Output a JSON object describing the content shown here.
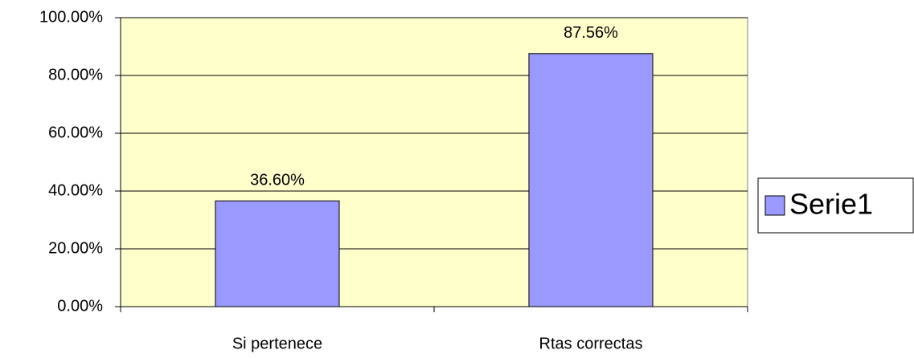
{
  "chart_data": {
    "type": "bar",
    "categories": [
      "Si pertenece",
      "Rtas correctas"
    ],
    "series": [
      {
        "name": "Serie1",
        "color": "#9999ff",
        "values": [
          36.6,
          87.56
        ],
        "value_labels": [
          "36.60%",
          "87.56%"
        ]
      }
    ],
    "ylim": [
      0,
      100
    ],
    "yticks": [
      {
        "value": 0,
        "label": "0.00%"
      },
      {
        "value": 20,
        "label": "20.00%"
      },
      {
        "value": 40,
        "label": "40.00%"
      },
      {
        "value": 60,
        "label": "60.00%"
      },
      {
        "value": 80,
        "label": "80.00%"
      },
      {
        "value": 100,
        "label": "100.00%"
      }
    ],
    "grid": true,
    "legend": "right",
    "plot_background": "#ffffcc"
  }
}
